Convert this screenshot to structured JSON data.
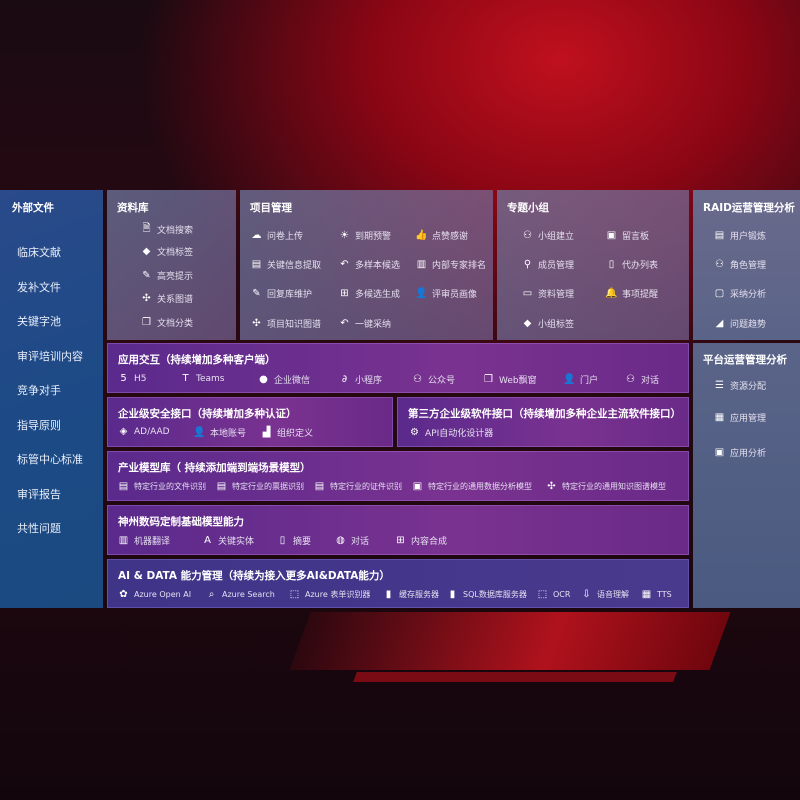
{
  "sidebar": {
    "title": "外部文件",
    "items": [
      "临床文献",
      "发补文件",
      "关键字池",
      "审评培训内容",
      "竞争对手",
      "指导原则",
      "标管中心标准",
      "审评报告",
      "共性问题"
    ]
  },
  "library": {
    "title": "资料库",
    "items": [
      {
        "icon": "document-search-icon",
        "label": "文档搜索"
      },
      {
        "icon": "tag-icon",
        "label": "文档标签"
      },
      {
        "icon": "highlight-pen-icon",
        "label": "高亮提示"
      },
      {
        "icon": "graph-network-icon",
        "label": "关系图谱"
      },
      {
        "icon": "document-copy-icon",
        "label": "文档分类"
      }
    ]
  },
  "project": {
    "title": "项目管理",
    "items": [
      {
        "icon": "cloud-upload-icon",
        "label": "问卷上传"
      },
      {
        "icon": "alarm-light-icon",
        "label": "到期预警"
      },
      {
        "icon": "thumbs-up-icon",
        "label": "点赞感谢"
      },
      {
        "icon": "form-icon",
        "label": "关键信息提取"
      },
      {
        "icon": "reply-icon",
        "label": "多样本候选"
      },
      {
        "icon": "ranking-icon",
        "label": "内部专家排名"
      },
      {
        "icon": "edit-icon",
        "label": "回复库维护"
      },
      {
        "icon": "puzzle-icon",
        "label": "多候选生成"
      },
      {
        "icon": "user-icon",
        "label": "评审员画像"
      },
      {
        "icon": "graph-network-icon",
        "label": "项目知识图谱"
      },
      {
        "icon": "reply-icon",
        "label": "一键采纳"
      }
    ]
  },
  "group": {
    "title": "专题小组",
    "items": [
      {
        "icon": "group-icon",
        "label": "小组建立"
      },
      {
        "icon": "bbs-icon",
        "label": "留言板"
      },
      {
        "icon": "user-add-icon",
        "label": "成员管理"
      },
      {
        "icon": "clipboard-icon",
        "label": "代办列表"
      },
      {
        "icon": "folder-icon",
        "label": "资料管理"
      },
      {
        "icon": "bell-icon",
        "label": "事项提醒"
      },
      {
        "icon": "tag-icon",
        "label": "小组标签"
      }
    ]
  },
  "raid": {
    "title": "RAID运营管理分析",
    "items": [
      {
        "icon": "id-card-icon",
        "label": "用户锻炼"
      },
      {
        "icon": "users-icon",
        "label": "角色管理"
      },
      {
        "icon": "qa-icon",
        "label": "采纳分析"
      },
      {
        "icon": "trend-chart-icon",
        "label": "问题趋势"
      }
    ]
  },
  "platform": {
    "title": "平台运营管理分析",
    "items": [
      {
        "icon": "checklist-icon",
        "label": "资源分配"
      },
      {
        "icon": "apps-icon",
        "label": "应用管理"
      },
      {
        "icon": "analysis-icon",
        "label": "应用分析"
      }
    ]
  },
  "interaction": {
    "title": "应用交互（持续增加多种客户端）",
    "items": [
      {
        "icon": "html5-icon",
        "label": "H5"
      },
      {
        "icon": "teams-icon",
        "label": "Teams"
      },
      {
        "icon": "wechat-icon",
        "label": "企业微信"
      },
      {
        "icon": "miniprogram-icon",
        "label": "小程序"
      },
      {
        "icon": "public-account-icon",
        "label": "公众号"
      },
      {
        "icon": "window-icon",
        "label": "Web飘窗"
      },
      {
        "icon": "portal-user-icon",
        "label": "门户"
      },
      {
        "icon": "chat-users-icon",
        "label": "对话"
      }
    ]
  },
  "security": {
    "title": "企业级安全接口（持续增加多种认证）",
    "items": [
      {
        "icon": "ad-icon",
        "label": "AD/AAD"
      },
      {
        "icon": "local-account-icon",
        "label": "本地账号"
      },
      {
        "icon": "organization-icon",
        "label": "组织定义"
      }
    ]
  },
  "thirdparty": {
    "title": "第三方企业级软件接口（持续增加多种企业主流软件接口）",
    "items": [
      {
        "icon": "gear-icon",
        "label": "API自动化设计器"
      }
    ]
  },
  "industry": {
    "title": "产业模型库（ 持续添加端到端场景模型）",
    "items": [
      {
        "icon": "document-icon",
        "label": "特定行业的文件识别"
      },
      {
        "icon": "receipt-icon",
        "label": "特定行业的票据识别"
      },
      {
        "icon": "id-card-icon",
        "label": "特定行业的证件识别"
      },
      {
        "icon": "data-chart-icon",
        "label": "特定行业的通用数据分析模型"
      },
      {
        "icon": "graph-network-icon",
        "label": "特定行业的通用知识图谱模型"
      }
    ]
  },
  "base": {
    "title": "神州数码定制基础模型能力",
    "items": [
      {
        "icon": "translate-icon",
        "label": "机器翻译"
      },
      {
        "icon": "entity-icon",
        "label": "关键实体"
      },
      {
        "icon": "summary-icon",
        "label": "摘要"
      },
      {
        "icon": "chat-icon",
        "label": "对话"
      },
      {
        "icon": "puzzle-icon",
        "label": "内容合成"
      }
    ]
  },
  "aidata": {
    "title": "AI & DATA 能力管理（持续为接入更多AI&DATA能力）",
    "items": [
      {
        "icon": "openai-icon",
        "label": "Azure Open AI"
      },
      {
        "icon": "search-doc-icon",
        "label": "Azure Search"
      },
      {
        "icon": "form-recognizer-icon",
        "label": "Azure 表单识别器"
      },
      {
        "icon": "cache-icon",
        "label": "缓存服务器"
      },
      {
        "icon": "sql-icon",
        "label": "SQL数据库服务器"
      },
      {
        "icon": "ocr-icon",
        "label": "OCR"
      },
      {
        "icon": "speech-icon",
        "label": "语音理解"
      },
      {
        "icon": "tts-icon",
        "label": "TTS"
      }
    ]
  }
}
